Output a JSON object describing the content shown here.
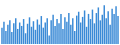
{
  "chart_data": {
    "type": "bar",
    "categories": [
      null,
      null,
      null,
      null,
      null,
      null,
      null,
      null,
      null,
      null,
      null,
      null,
      null,
      null,
      null,
      null,
      null,
      null,
      null,
      null,
      null,
      null,
      null,
      null,
      null,
      null,
      null,
      null,
      null,
      null,
      null,
      null,
      null,
      null,
      null,
      null,
      null,
      null,
      null,
      null,
      null,
      null,
      null,
      null,
      null,
      null,
      null,
      null,
      null,
      null,
      null,
      null,
      null,
      null,
      null,
      null,
      null,
      null,
      null,
      null
    ],
    "values": [
      38,
      52,
      30,
      45,
      55,
      28,
      48,
      60,
      35,
      50,
      42,
      58,
      25,
      47,
      62,
      40,
      53,
      33,
      57,
      45,
      65,
      38,
      50,
      60,
      20,
      55,
      68,
      42,
      58,
      48,
      70,
      35,
      62,
      52,
      72,
      45,
      60,
      30,
      66,
      75,
      50,
      63,
      78,
      40,
      70,
      58,
      80,
      48,
      72,
      85,
      55,
      68,
      90,
      60,
      76,
      45,
      82,
      70,
      88,
      65
    ],
    "color": "#3a8ad6",
    "ylim": [
      0,
      100
    ],
    "grid": false,
    "tick_labels": false
  }
}
